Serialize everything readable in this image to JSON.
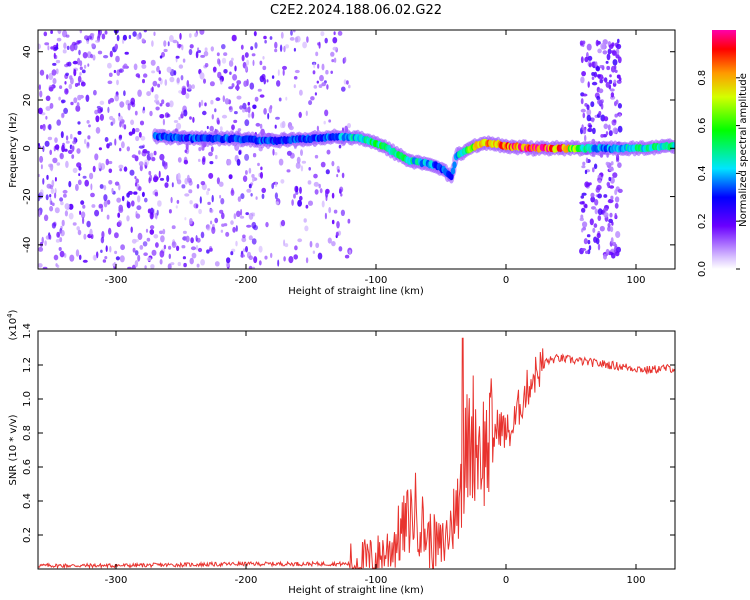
{
  "title": "C2E2.2024.188.06.02.G22",
  "chart_data": [
    {
      "type": "heatmap",
      "xlabel": "Height of straight line (km)",
      "ylabel": "Frequency (Hz)",
      "xlim": [
        -360,
        130
      ],
      "ylim": [
        -50,
        49
      ],
      "xticks": [
        -300,
        -200,
        -100,
        0,
        100
      ],
      "yticks": [
        -40,
        -20,
        0,
        20,
        40
      ],
      "colorbar": {
        "label": "Normalized spectral amplitude",
        "ticks": [
          "0.0",
          "0.2",
          "0.4",
          "0.6",
          "0.8"
        ],
        "range": [
          0,
          1
        ]
      },
      "ridge": {
        "x": [
          -270,
          -240,
          -210,
          -180,
          -150,
          -130,
          -110,
          -95,
          -85,
          -75,
          -65,
          -55,
          -48,
          -42,
          -38,
          -30,
          -20,
          -10,
          0,
          20,
          40,
          60,
          80,
          100,
          130
        ],
        "y": [
          5,
          4,
          4,
          3,
          4,
          5,
          4,
          1,
          -2,
          -5,
          -6,
          -7,
          -9,
          -12,
          -3,
          -1,
          2,
          2,
          1,
          0,
          0,
          0,
          0,
          0,
          1
        ],
        "amplitude": [
          0.35,
          0.35,
          0.35,
          0.35,
          0.35,
          0.4,
          0.5,
          0.55,
          0.55,
          0.5,
          0.45,
          0.4,
          0.35,
          0.3,
          0.45,
          0.6,
          0.8,
          0.85,
          0.9,
          0.95,
          0.95,
          0.5,
          0.4,
          0.5,
          0.5
        ]
      },
      "noise_band": {
        "x_range": [
          -360,
          -120
        ]
      },
      "side_band": {
        "x_range": [
          58,
          88
        ],
        "y_range": [
          -45,
          45
        ]
      }
    },
    {
      "type": "line",
      "xlabel": "Height of straight line (km)",
      "ylabel": "SNR (10 * v/v)",
      "y_multiplier": "(x10",
      "y_multiplier_exp": "4",
      "y_multiplier_close": ")",
      "xlim": [
        -360,
        130
      ],
      "ylim": [
        0,
        1.4
      ],
      "xticks": [
        -300,
        -200,
        -100,
        0,
        100
      ],
      "yticks": [
        "0.2",
        "0.4",
        "0.6",
        "0.8",
        "1.0",
        "1.2",
        "1.4"
      ],
      "color": "#e8332e",
      "series": [
        {
          "x": [
            -360,
            -300,
            -200,
            -150,
            -120,
            -100,
            -90,
            -80,
            -70,
            -60,
            -50,
            -45,
            -40,
            -35,
            -30,
            -25,
            -20,
            -15,
            -10,
            -5,
            0,
            5,
            10,
            20,
            30,
            40,
            60,
            80,
            100,
            110,
            120,
            130
          ],
          "y": [
            0.02,
            0.02,
            0.03,
            0.03,
            0.03,
            0.06,
            0.12,
            0.22,
            0.35,
            0.18,
            0.12,
            0.2,
            0.3,
            0.5,
            0.7,
            0.8,
            0.72,
            0.7,
            0.78,
            0.85,
            0.8,
            0.82,
            0.95,
            1.12,
            1.22,
            1.24,
            1.22,
            1.2,
            1.18,
            1.17,
            1.18,
            1.18
          ]
        }
      ]
    }
  ]
}
